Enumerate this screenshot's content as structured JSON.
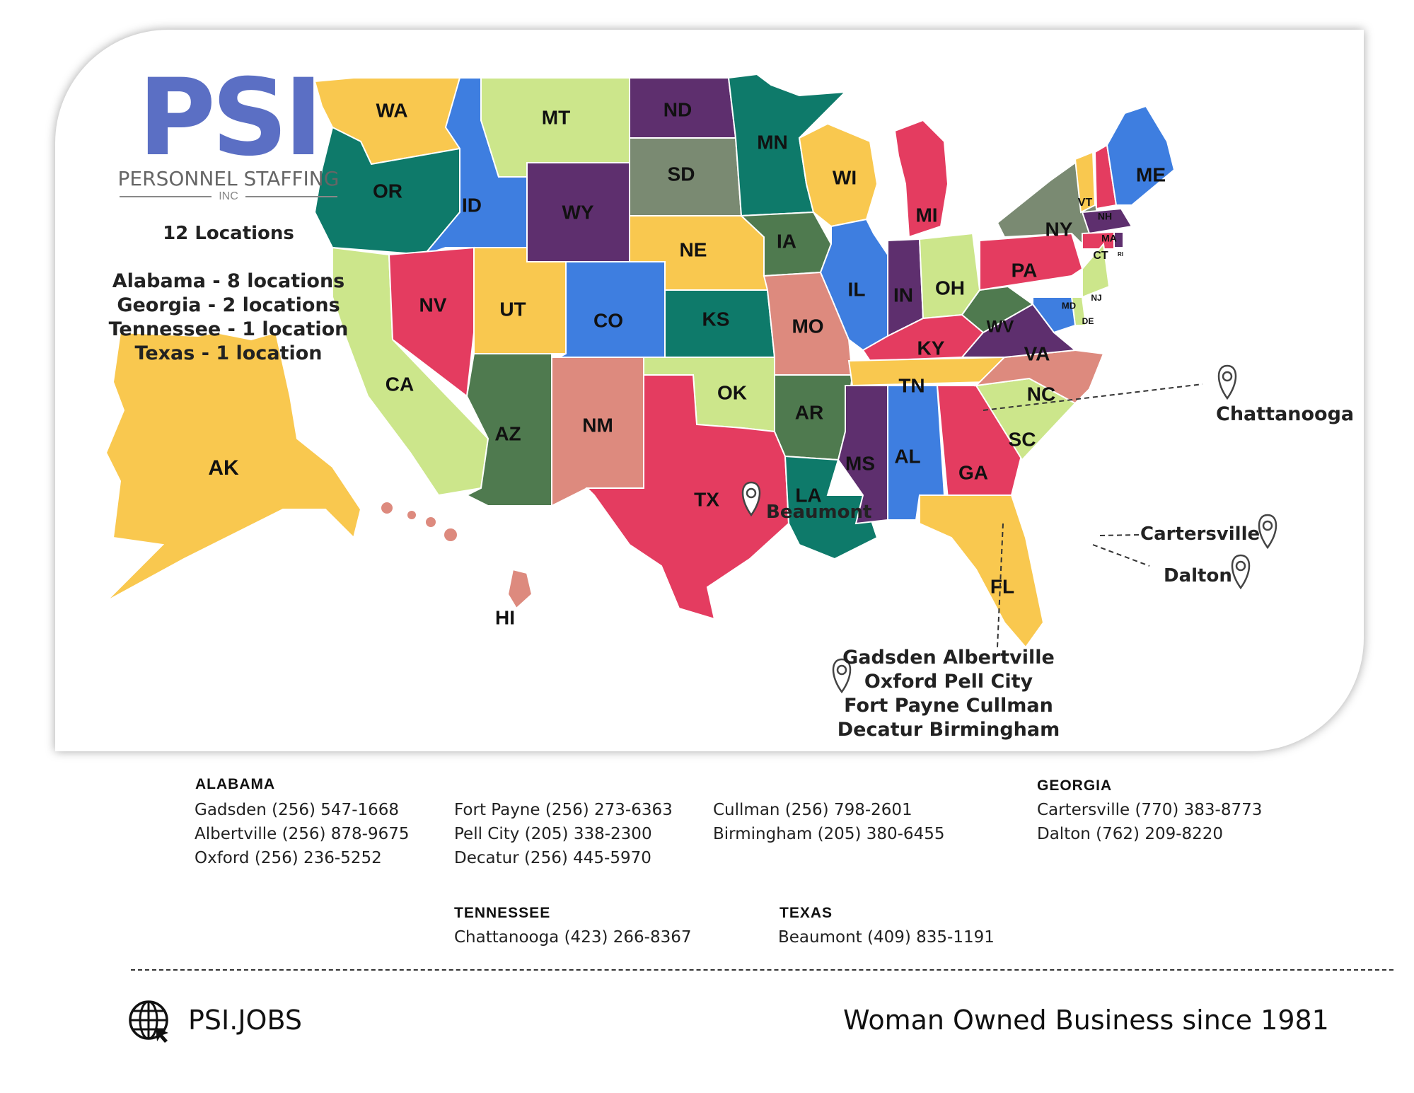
{
  "logo": {
    "brand": "PSI",
    "name": "PERSONNEL STAFFING",
    "suffix": "INC"
  },
  "summary": {
    "total": "12 Locations",
    "lines": [
      "Alabama - 8 locations",
      "Georgia - 2 locations",
      "Tennessee - 1 location",
      "Texas - 1 location"
    ]
  },
  "map": {
    "states": [
      {
        "code": "WA",
        "color": "#f9c84f"
      },
      {
        "code": "OR",
        "color": "#0e7a6a"
      },
      {
        "code": "CA",
        "color": "#cce68b"
      },
      {
        "code": "ID",
        "color": "#3e7ee0"
      },
      {
        "code": "NV",
        "color": "#e43c60"
      },
      {
        "code": "MT",
        "color": "#cce68b"
      },
      {
        "code": "WY",
        "color": "#5e2f6e"
      },
      {
        "code": "UT",
        "color": "#f9c84f"
      },
      {
        "code": "AZ",
        "color": "#4f7a4f"
      },
      {
        "code": "CO",
        "color": "#3e7ee0"
      },
      {
        "code": "NM",
        "color": "#dd8a7e"
      },
      {
        "code": "ND",
        "color": "#5e2f6e"
      },
      {
        "code": "SD",
        "color": "#7a8a72"
      },
      {
        "code": "NE",
        "color": "#f9c84f"
      },
      {
        "code": "KS",
        "color": "#0e7a6a"
      },
      {
        "code": "OK",
        "color": "#cce68b"
      },
      {
        "code": "TX",
        "color": "#e43c60"
      },
      {
        "code": "MN",
        "color": "#0e7a6a"
      },
      {
        "code": "IA",
        "color": "#4f7a4f"
      },
      {
        "code": "MO",
        "color": "#dd8a7e"
      },
      {
        "code": "AR",
        "color": "#4f7a4f"
      },
      {
        "code": "LA",
        "color": "#0e7a6a"
      },
      {
        "code": "WI",
        "color": "#f9c84f"
      },
      {
        "code": "IL",
        "color": "#3e7ee0"
      },
      {
        "code": "MI",
        "color": "#e43c60"
      },
      {
        "code": "IN",
        "color": "#5e2f6e"
      },
      {
        "code": "OH",
        "color": "#cce68b"
      },
      {
        "code": "KY",
        "color": "#e43c60"
      },
      {
        "code": "TN",
        "color": "#f9c84f"
      },
      {
        "code": "MS",
        "color": "#5e2f6e"
      },
      {
        "code": "AL",
        "color": "#3e7ee0"
      },
      {
        "code": "GA",
        "color": "#e43c60"
      },
      {
        "code": "FL",
        "color": "#f9c84f"
      },
      {
        "code": "SC",
        "color": "#cce68b"
      },
      {
        "code": "NC",
        "color": "#dd8a7e"
      },
      {
        "code": "VA",
        "color": "#5e2f6e"
      },
      {
        "code": "WV",
        "color": "#4f7a4f"
      },
      {
        "code": "PA",
        "color": "#e43c60"
      },
      {
        "code": "NY",
        "color": "#7a8a72"
      },
      {
        "code": "VT",
        "color": "#f9c84f"
      },
      {
        "code": "NH",
        "color": "#e43c60"
      },
      {
        "code": "ME",
        "color": "#3e7ee0"
      },
      {
        "code": "MA",
        "color": "#5e2f6e"
      },
      {
        "code": "CT",
        "color": "#e43c60"
      },
      {
        "code": "RI",
        "color": "#5e2f6e"
      },
      {
        "code": "NJ",
        "color": "#cce68b"
      },
      {
        "code": "DE",
        "color": "#cce68b"
      },
      {
        "code": "MD",
        "color": "#3e7ee0"
      },
      {
        "code": "AK",
        "color": "#f9c84f"
      },
      {
        "code": "HI",
        "color": "#dd8a7e"
      }
    ],
    "cities": {
      "chattanooga": "Chattanooga",
      "beaumont": "Beaumont",
      "cartersville": "Cartersville",
      "dalton": "Dalton",
      "alabama_list": [
        "Gadsden  Albertville",
        "Oxford  Pell City",
        "Fort Payne  Cullman",
        "Decatur  Birmingham"
      ]
    }
  },
  "directory": {
    "alabama": {
      "heading": "ALABAMA",
      "col1": [
        "Gadsden (256) 547-1668",
        "Albertville (256) 878-9675",
        "Oxford (256) 236-5252"
      ],
      "col2": [
        "Fort  Payne  (256)  273-6363",
        "Pell City  (205) 338-2300",
        "Decatur (256) 445-5970"
      ],
      "col3": [
        "Cullman (256) 798-2601",
        "Birmingham (205) 380-6455"
      ]
    },
    "georgia": {
      "heading": "GEORGIA",
      "lines": [
        "Cartersville (770) 383-8773",
        "Dalton (762) 209-8220"
      ]
    },
    "tennessee": {
      "heading": "TENNESSEE",
      "lines": [
        "Chattanooga (423) 266-8367"
      ]
    },
    "texas": {
      "heading": "TEXAS",
      "lines": [
        "Beaumont (409) 835-1191"
      ]
    }
  },
  "footer": {
    "website": "PSI.JOBS",
    "tagline": "Woman Owned Business since 1981"
  }
}
